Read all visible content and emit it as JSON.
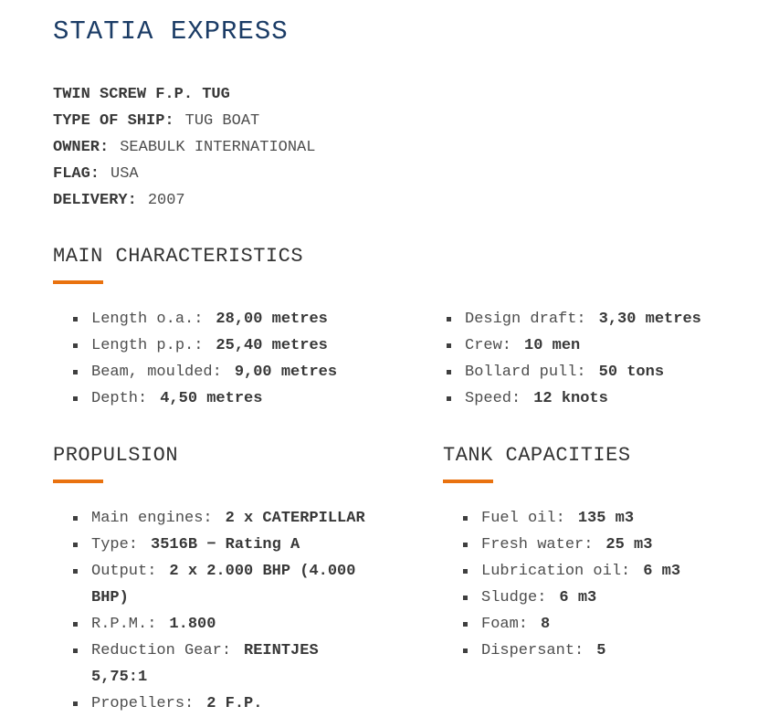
{
  "page": {
    "title": "STATIA EXPRESS",
    "subtitle": "TWIN SCREW F.P. TUG"
  },
  "info": [
    {
      "label": "TYPE OF SHIP:",
      "value": "TUG BOAT"
    },
    {
      "label": "OWNER:",
      "value": "SEABULK INTERNATIONAL"
    },
    {
      "label": "FLAG:",
      "value": "USA"
    },
    {
      "label": "DELIVERY:",
      "value": "2007"
    }
  ],
  "sections": {
    "main_characteristics": {
      "heading": "MAIN CHARACTERISTICS",
      "left": [
        {
          "label": "Length o.a.:",
          "value": "28,00 metres"
        },
        {
          "label": "Length p.p.:",
          "value": "25,40 metres"
        },
        {
          "label": "Beam, moulded:",
          "value": "9,00 metres"
        },
        {
          "label": "Depth:",
          "value": "4,50 metres"
        }
      ],
      "right": [
        {
          "label": "Design draft:",
          "value": "3,30 metres"
        },
        {
          "label": "Crew:",
          "value": "10 men"
        },
        {
          "label": "Bollard pull:",
          "value": "50 tons"
        },
        {
          "label": "Speed:",
          "value": "12 knots"
        }
      ]
    },
    "propulsion": {
      "heading": "PROPULSION",
      "items": [
        {
          "label": "Main engines:",
          "value": "2 x CATERPILLAR"
        },
        {
          "label": "Type:",
          "value": "3516B − Rating A"
        },
        {
          "label": "Output:",
          "value": "2 x 2.000 BHP (4.000 BHP)"
        },
        {
          "label": "R.P.M.:",
          "value": "1.800"
        },
        {
          "label": "Reduction Gear:",
          "value": "REINTJES 5,75:1"
        },
        {
          "label": "Propellers:",
          "value": "2 F.P."
        }
      ]
    },
    "tank_capacities": {
      "heading": "TANK CAPACITIES",
      "items": [
        {
          "label": "Fuel oil:",
          "value": "135 m3"
        },
        {
          "label": "Fresh water:",
          "value": "25 m3"
        },
        {
          "label": "Lubrication oil:",
          "value": "6 m3"
        },
        {
          "label": "Sludge:",
          "value": "6 m3"
        },
        {
          "label": "Foam:",
          "value": "8"
        },
        {
          "label": "Dispersant:",
          "value": "5"
        }
      ]
    }
  },
  "colors": {
    "title": "#1b3c66",
    "accent": "#e9720f",
    "text": "#4d4d4d",
    "strong_text": "#383838"
  }
}
